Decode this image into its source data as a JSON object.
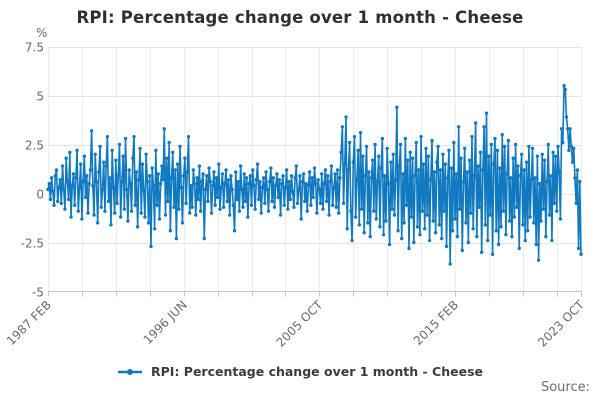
{
  "header": {
    "title": "RPI: Percentage change over 1 month - Cheese"
  },
  "legend": {
    "label": "RPI: Percentage change over 1 month - Cheese"
  },
  "footer": {
    "source": "Source:"
  },
  "chart_data": {
    "type": "line",
    "title": "RPI: Percentage change over 1 month - Cheese",
    "unit": "%",
    "xlabel": "",
    "ylabel": "%",
    "ylim": [
      -5,
      7.5
    ],
    "y_ticks": [
      7.5,
      5,
      2.5,
      0,
      -2.5,
      -5
    ],
    "grid": true,
    "legend_position": "bottom",
    "x_frequency": "monthly",
    "x_start": "1987 FEB",
    "x_end": "2023 OCT",
    "x_range": [
      0,
      440
    ],
    "x_minor_tick_step": 28,
    "x_major_ticks": [
      {
        "month": 0,
        "label": "1987 FEB"
      },
      {
        "month": 112,
        "label": "1996 JUN"
      },
      {
        "month": 224,
        "label": "2005 OCT"
      },
      {
        "month": 336,
        "label": "2015 FEB"
      },
      {
        "month": 440,
        "label": "2023 OCT"
      }
    ],
    "colors": {
      "series": "#1079c0",
      "grid": "#e6e6e6",
      "grid_vertical": "#ededed",
      "axis": "#b9c7d5",
      "tick_text": "#6b6b6b"
    },
    "series": [
      {
        "name": "RPI: Percentage change over 1 month - Cheese",
        "color": "#1079c0",
        "values": [
          0.2,
          0.5,
          -0.3,
          0.8,
          0.1,
          -0.6,
          0.9,
          1.2,
          -0.4,
          0.3,
          0.7,
          -0.5,
          1.4,
          0.2,
          -0.8,
          1.8,
          0.6,
          -0.3,
          2.1,
          -1.2,
          0.4,
          1.0,
          -0.6,
          0.8,
          2.2,
          -0.9,
          0.3,
          1.5,
          -1.3,
          0.6,
          1.9,
          -0.2,
          0.9,
          -1.0,
          0.5,
          1.2,
          3.2,
          0.4,
          -1.1,
          2.0,
          0.6,
          -1.5,
          1.1,
          2.4,
          -0.7,
          0.2,
          1.6,
          -0.9,
          1.4,
          2.9,
          -0.4,
          0.8,
          -1.6,
          2.2,
          0.3,
          -1.0,
          1.7,
          -0.5,
          0.9,
          2.5,
          -1.2,
          0.6,
          1.9,
          -0.8,
          2.8,
          0.2,
          -1.4,
          1.2,
          0.5,
          -0.9,
          1.8,
          2.9,
          -0.6,
          1.1,
          -1.7,
          0.7,
          2.3,
          -1.0,
          1.5,
          0.2,
          -1.2,
          2.0,
          0.6,
          -1.5,
          0.9,
          -2.7,
          1.3,
          0.4,
          -1.8,
          2.2,
          -0.6,
          1.0,
          -1.3,
          0.5,
          1.4,
          0.7,
          3.3,
          -1.1,
          1.8,
          -0.4,
          2.6,
          -1.9,
          0.8,
          2.1,
          -0.7,
          1.2,
          -2.3,
          1.5,
          -0.8,
          2.4,
          0.3,
          -1.5,
          0.9,
          1.8,
          -0.5,
          1.1,
          2.9,
          -1.0,
          0.4,
          -0.7,
          1.2,
          0.5,
          -1.1,
          0.8,
          -0.3,
          1.4,
          -0.9,
          0.6,
          1.0,
          -2.3,
          0.2,
          0.9,
          -0.4,
          1.3,
          0.6,
          -1.0,
          0.4,
          1.1,
          -0.6,
          0.8,
          -0.2,
          1.5,
          -0.8,
          0.3,
          1.0,
          -0.7,
          0.5,
          1.2,
          -0.4,
          0.7,
          -1.1,
          0.9,
          0.2,
          -0.6,
          -1.9,
          1.1,
          -0.3,
          0.6,
          -0.9,
          1.4,
          0.2,
          -0.7,
          1.0,
          -0.4,
          0.8,
          -1.2,
          0.5,
          0.9,
          -0.6,
          1.2,
          0.4,
          -0.8,
          0.7,
          1.5,
          -0.3,
          0.6,
          -1.0,
          0.3,
          0.8,
          -0.5,
          1.1,
          0.2,
          -0.9,
          0.6,
          1.3,
          -0.4,
          0.8,
          -0.7,
          0.4,
          1.0,
          -0.2,
          0.7,
          -1.1,
          0.5,
          0.9,
          -0.6,
          0.3,
          1.2,
          -0.8,
          0.6,
          -0.3,
          0.9,
          0.1,
          -0.7,
          0.8,
          1.4,
          -0.5,
          0.2,
          0.9,
          -1.3,
          0.6,
          1.0,
          -0.4,
          0.5,
          -0.9,
          0.4,
          1.1,
          -0.6,
          0.8,
          -0.2,
          1.3,
          0.5,
          -1.0,
          0.7,
          0.2,
          -0.5,
          1.0,
          -0.8,
          0.5,
          1.2,
          -0.4,
          0.9,
          -1.1,
          0.6,
          1.4,
          -0.6,
          0.3,
          1.0,
          -0.7,
          1.2,
          -1.0,
          0.8,
          2.1,
          3.4,
          -0.5,
          1.5,
          3.9,
          -1.8,
          1.2,
          2.6,
          -0.9,
          -2.4,
          1.6,
          2.9,
          -1.2,
          0.7,
          2.2,
          -1.6,
          3.1,
          -0.8,
          1.9,
          -2.0,
          0.9,
          2.4,
          -1.5,
          1.1,
          -2.2,
          0.8,
          1.7,
          -0.9,
          2.5,
          -1.3,
          0.6,
          1.9,
          -1.7,
          1.3,
          2.8,
          -2.1,
          0.9,
          -1.4,
          2.3,
          0.5,
          -2.6,
          1.6,
          -0.8,
          2.0,
          -1.1,
          0.7,
          4.4,
          -1.9,
          1.4,
          2.5,
          -2.3,
          1.0,
          -1.5,
          2.8,
          -0.6,
          1.7,
          -2.8,
          2.1,
          -1.2,
          1.8,
          -2.5,
          0.9,
          2.6,
          -1.7,
          1.2,
          -2.1,
          2.9,
          -0.9,
          1.5,
          -1.8,
          2.3,
          -1.1,
          1.9,
          -2.4,
          0.7,
          2.7,
          -1.4,
          1.1,
          -2.0,
          1.6,
          2.4,
          -1.6,
          1.2,
          -2.3,
          2.0,
          -0.9,
          1.5,
          -2.7,
          0.8,
          2.2,
          -3.6,
          1.3,
          -1.9,
          2.6,
          -1.3,
          1.0,
          -2.2,
          3.4,
          -0.8,
          1.8,
          -2.9,
          0.6,
          2.3,
          -1.5,
          1.1,
          -2.5,
          1.7,
          -1.0,
          2.9,
          -1.8,
          0.9,
          3.6,
          -2.2,
          1.4,
          -0.7,
          2.1,
          -3.0,
          1.2,
          3.4,
          -1.6,
          4.1,
          -2.4,
          1.9,
          -1.1,
          2.5,
          -3.1,
          1.5,
          2.8,
          -1.9,
          2.2,
          -2.6,
          1.3,
          -1.7,
          3.0,
          -0.9,
          2.4,
          -2.1,
          1.0,
          2.7,
          -1.4,
          0.8,
          -2.2,
          1.8,
          -1.2,
          2.5,
          -0.7,
          1.4,
          -2.8,
          0.9,
          2.0,
          -1.6,
          1.2,
          -2.4,
          1.6,
          -1.9,
          2.4,
          -1.2,
          0.7,
          2.3,
          -1.5,
          0.8,
          -2.6,
          1.9,
          -3.4,
          0.5,
          -1.4,
          2.0,
          -0.8,
          1.7,
          -2.2,
          0.6,
          2.5,
          -1.1,
          0.9,
          -2.4,
          2.1,
          -0.5,
          1.9,
          -0.9,
          2.4,
          1.1,
          -1.3,
          3.3,
          2.6,
          5.5,
          5.3,
          3.9,
          3.3,
          2.2,
          3.3,
          2.4,
          1.6,
          2.3,
          0.8,
          -0.5,
          1.2,
          -2.8,
          0.6,
          -3.1
        ]
      }
    ]
  }
}
